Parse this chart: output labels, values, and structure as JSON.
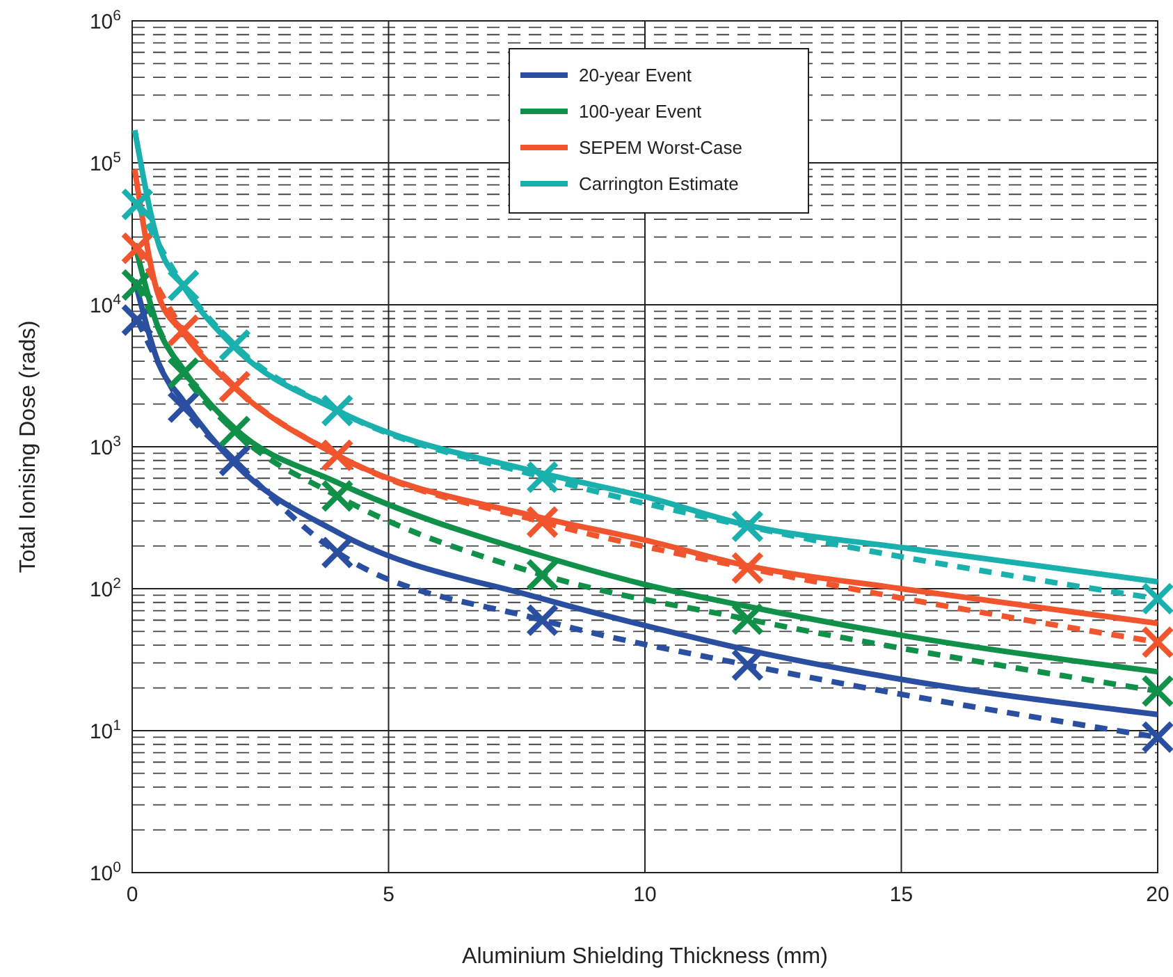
{
  "chart_data": {
    "type": "line",
    "xlabel": "Aluminium Shielding Thickness (mm)",
    "ylabel": "Total Ionising Dose (rads)",
    "log": "y",
    "grid": true,
    "legend": "top",
    "xlim": [
      0,
      20
    ],
    "xticks": [
      0,
      5,
      10,
      15,
      20
    ],
    "ylim": [
      1,
      1000000
    ],
    "yticks": [
      {
        "value": 1,
        "label": "10$^{0}$"
      },
      {
        "value": 10,
        "label": "10$^{1}$"
      },
      {
        "value": 100,
        "label": "10$^{2}$"
      },
      {
        "value": 1000,
        "label": "10$^{3}$"
      },
      {
        "value": 10000,
        "label": "10$^{4}$"
      },
      {
        "value": 100000,
        "label": "10$^{5}$"
      },
      {
        "value": 1000000,
        "label": "10$^{6}$"
      }
    ],
    "series": [
      {
        "name": "20-year Event",
        "color": "#2a4fa0",
        "line_style": "solid",
        "marker": "none",
        "x": [
          0.05,
          0.5,
          1,
          2,
          4,
          8,
          10,
          12,
          15,
          20
        ],
        "values": [
          15000,
          4000,
          2100,
          760,
          250,
          85,
          55,
          37,
          23,
          13
        ]
      },
      {
        "name": "100-year Event",
        "color": "#11904a",
        "line_style": "solid",
        "marker": "none",
        "x": [
          0.05,
          0.5,
          1,
          2,
          4,
          8,
          10,
          12,
          15,
          20
        ],
        "values": [
          27000,
          7000,
          3500,
          1350,
          560,
          170,
          107,
          75,
          47,
          26
        ]
      },
      {
        "name": "SEPEM Worst-Case",
        "color": "#f0552e",
        "line_style": "solid",
        "marker": "none",
        "x": [
          0.05,
          0.5,
          1,
          2,
          4,
          8,
          10,
          12,
          15,
          20
        ],
        "values": [
          90000,
          12000,
          6300,
          2600,
          870,
          315,
          220,
          145,
          100,
          57
        ]
      },
      {
        "name": "Carrington Estimate",
        "color": "#1ab0ad",
        "line_style": "solid",
        "marker": "none",
        "x": [
          0.05,
          0.5,
          1,
          2,
          4,
          8,
          10,
          12,
          15,
          20
        ],
        "values": [
          170000,
          28000,
          13500,
          5000,
          1800,
          650,
          445,
          280,
          195,
          112
        ]
      },
      {
        "color": "#2a4fa0",
        "line_style": "dashed",
        "marker": "cross",
        "x": [
          0.1,
          1,
          2,
          4,
          8,
          12,
          20
        ],
        "values": [
          7800,
          1900,
          800,
          180,
          60,
          29,
          9
        ]
      },
      {
        "color": "#11904a",
        "line_style": "dashed",
        "marker": "cross",
        "x": [
          0.1,
          1,
          2,
          4,
          8,
          12,
          20
        ],
        "values": [
          13800,
          3300,
          1280,
          450,
          125,
          61,
          19
        ]
      },
      {
        "color": "#f0552e",
        "line_style": "dashed",
        "marker": "cross",
        "x": [
          0.1,
          1,
          2,
          4,
          8,
          12,
          20
        ],
        "values": [
          25000,
          6600,
          2650,
          870,
          295,
          140,
          42
        ]
      },
      {
        "color": "#1ab0ad",
        "line_style": "dashed",
        "marker": "cross",
        "x": [
          0.1,
          1,
          2,
          4,
          8,
          12,
          20
        ],
        "values": [
          51000,
          13700,
          5200,
          1800,
          610,
          275,
          85
        ]
      }
    ]
  }
}
